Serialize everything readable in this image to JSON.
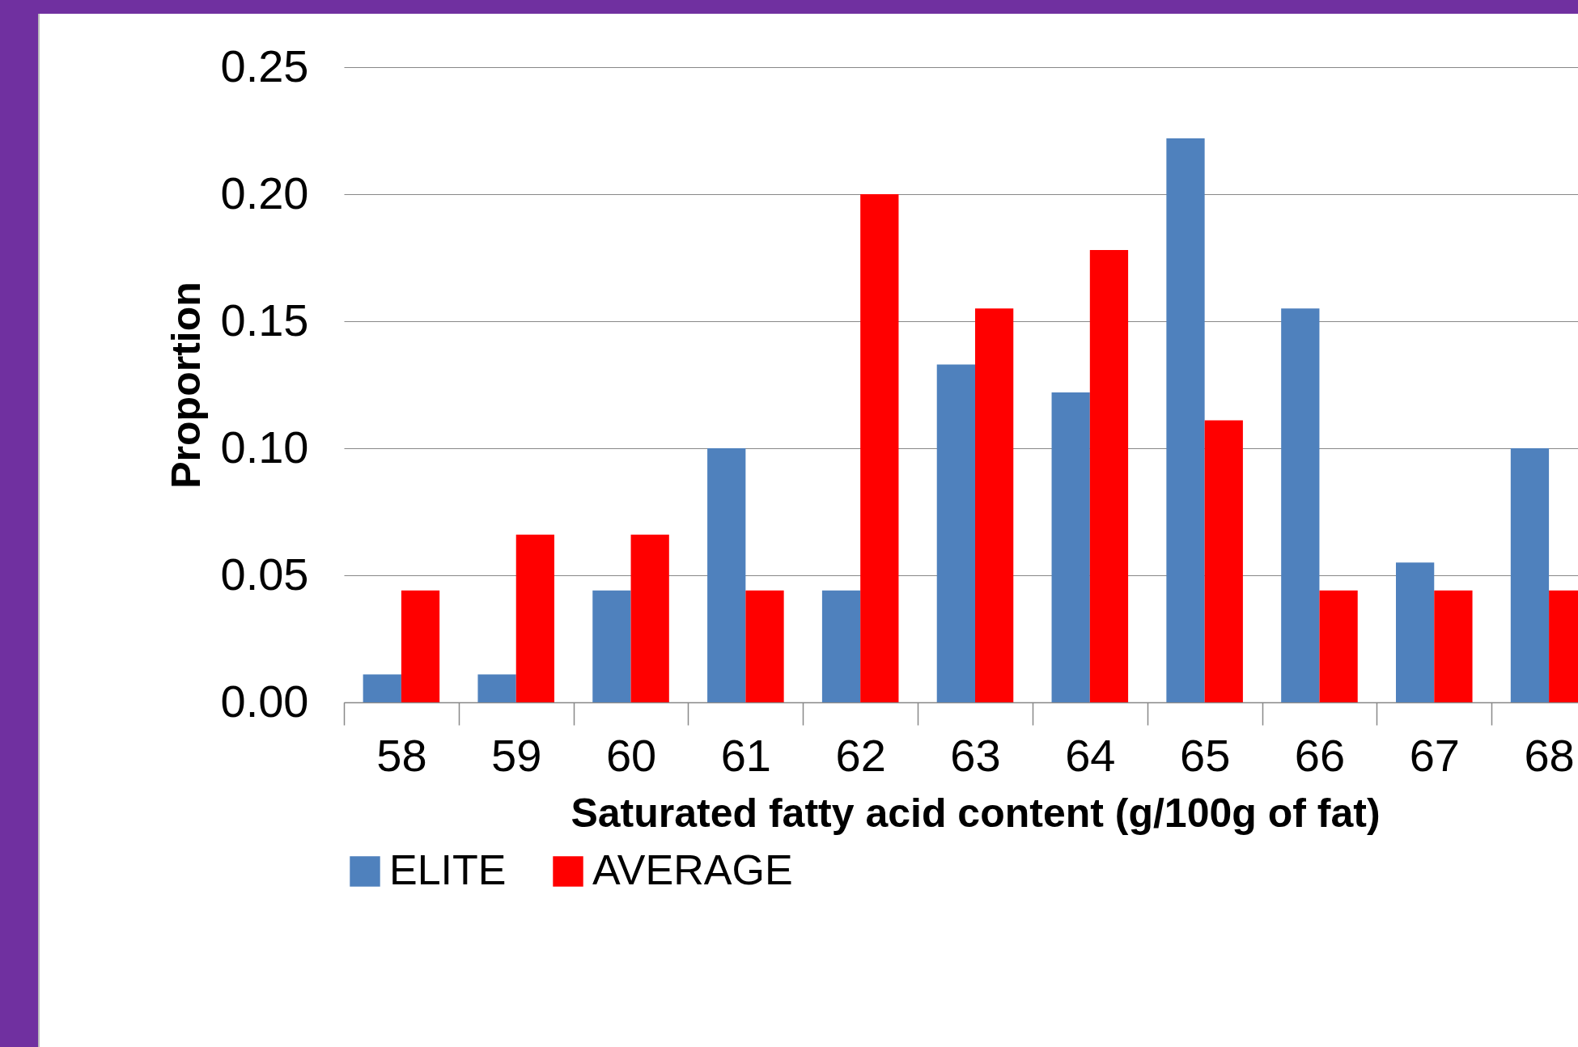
{
  "chart_data": {
    "type": "bar",
    "xlabel": "Saturated fatty acid content (g/100g of fat)",
    "ylabel": "Proportion",
    "categories": [
      "58",
      "59",
      "60",
      "61",
      "62",
      "63",
      "64",
      "65",
      "66",
      "67",
      "68"
    ],
    "series": [
      {
        "name": "ELITE",
        "color": "#4f81bd",
        "values": [
          0.011,
          0.011,
          0.044,
          0.1,
          0.044,
          0.133,
          0.122,
          0.222,
          0.155,
          0.055,
          0.1
        ]
      },
      {
        "name": "AVERAGE",
        "color": "#ff0000",
        "values": [
          0.044,
          0.066,
          0.066,
          0.044,
          0.2,
          0.155,
          0.178,
          0.111,
          0.044,
          0.044,
          0.044
        ]
      }
    ],
    "ylim": [
      0,
      0.25
    ],
    "yticks": [
      {
        "value": 0,
        "label": "0.00"
      },
      {
        "value": 0.05,
        "label": "0.05"
      },
      {
        "value": 0.1,
        "label": "0.10"
      },
      {
        "value": 0.15,
        "label": "0.15"
      },
      {
        "value": 0.2,
        "label": "0.20"
      },
      {
        "value": 0.25,
        "label": "0.25"
      }
    ],
    "grid": "y",
    "legend": "bottom"
  }
}
